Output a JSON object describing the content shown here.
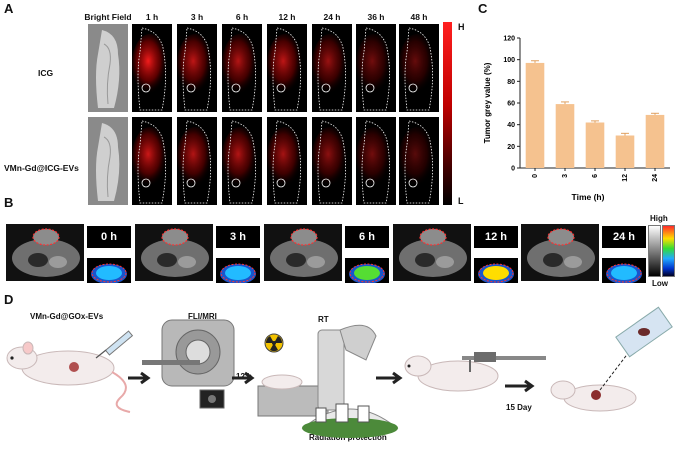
{
  "panels": {
    "a": "A",
    "b": "B",
    "c": "C",
    "d": "D"
  },
  "panelA": {
    "col_headers": [
      "Bright Field",
      "1 h",
      "3 h",
      "6 h",
      "12 h",
      "24 h",
      "36 h",
      "48 h"
    ],
    "row_labels": [
      "ICG",
      "VMn-Gd@ICG-EVs"
    ],
    "scale_high": "H",
    "scale_low": "L"
  },
  "panelB": {
    "times": [
      "0 h",
      "3 h",
      "6 h",
      "12 h",
      "24 h"
    ],
    "scale_high": "High",
    "scale_low": "Low"
  },
  "chart_data": {
    "type": "bar",
    "categories": [
      "0",
      "3",
      "6",
      "12",
      "24"
    ],
    "values": [
      97,
      59,
      42,
      30,
      49
    ],
    "errors": [
      2,
      2,
      1.5,
      2,
      1.5
    ],
    "xlabel": "Time (h)",
    "ylabel": "Tumor grey value (%)",
    "ylim": [
      0,
      120
    ],
    "yticks": [
      0,
      20,
      40,
      60,
      80,
      100,
      120
    ],
    "bar_color": "#f5c28f",
    "grid": false
  },
  "panelD": {
    "step1": "VMn-Gd@GOx-EVs",
    "step2": "FLI/MRI",
    "step3": "RT",
    "arrow1": "12 h",
    "arrow2": "15 Day",
    "protection": "Radiation protection"
  },
  "colors": {
    "fluor": "#ff1a1a",
    "bar": "#f5c28f",
    "scale_top": "#ff2a2a"
  }
}
